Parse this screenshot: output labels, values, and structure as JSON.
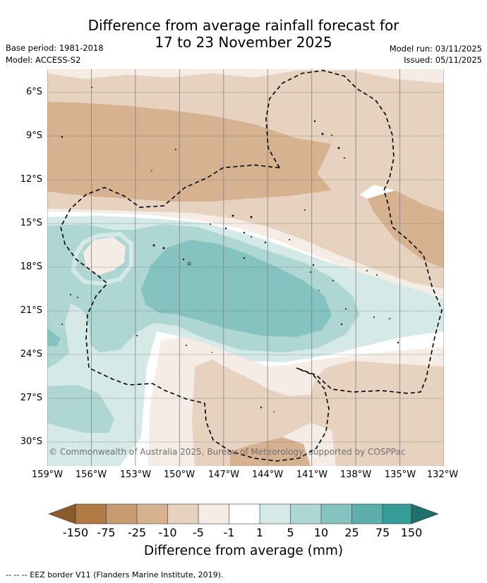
{
  "title": {
    "line1": "Difference from average rainfall forecast for",
    "line2": "17 to 23 November 2025"
  },
  "meta": {
    "base_period": "Base period: 1981-2018",
    "model": "Model: ACCESS-S2",
    "model_run": "Model run: 03/11/2025",
    "issued": "Issued: 05/11/2025"
  },
  "map": {
    "lat_labels": [
      "6°S",
      "9°S",
      "12°S",
      "15°S",
      "18°S",
      "21°S",
      "24°S",
      "27°S",
      "30°S"
    ],
    "lon_labels": [
      "159°W",
      "156°W",
      "153°W",
      "150°W",
      "147°W",
      "144°W",
      "141°W",
      "138°W",
      "135°W",
      "132°W"
    ],
    "credit": "© Commonwealth of Australia 2025, Bureau of Meteorology, supported by COSPPac"
  },
  "colorbar": {
    "title": "Difference from average (mm)",
    "ticks": [
      "-150",
      "-75",
      "-25",
      "-10",
      "-5",
      "-1",
      "1",
      "5",
      "10",
      "25",
      "75",
      "150"
    ],
    "colors": {
      "lt_neg150": "#8a5a2b",
      "neg150_neg75": "#b07a44",
      "neg75_neg25": "#c79b70",
      "neg25_neg10": "#d6b291",
      "neg10_neg5": "#e6d2bf",
      "neg5_neg1": "#f4ece5",
      "neg1_1": "#ffffff",
      "1_5": "#d5e9e7",
      "5_10": "#aed6d3",
      "10_25": "#84c3bf",
      "25_75": "#5cafab",
      "75_150": "#359c97",
      "gt_150": "#1f6f6b"
    }
  },
  "footer": {
    "legend": "-- -- -- EEZ border V11 (Flanders Marine Institute, 2019)."
  }
}
